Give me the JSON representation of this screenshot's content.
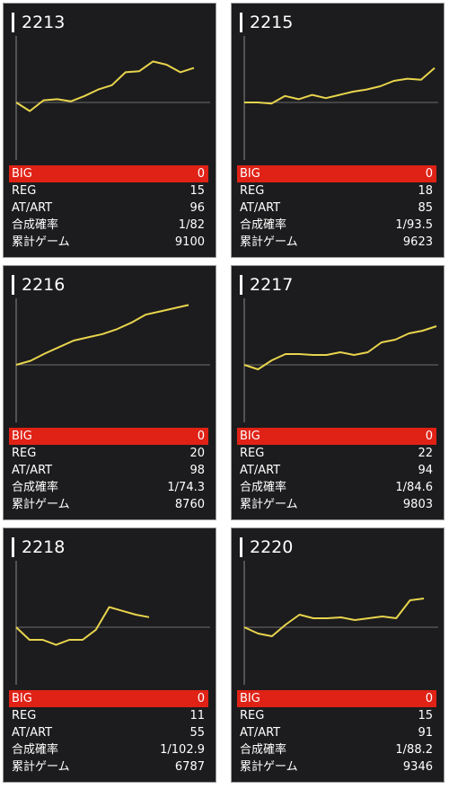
{
  "colors": {
    "line": "#e8d44d",
    "big_bar": "#e02216",
    "card_bg": "#1c1c1e",
    "axis": "#8a8a8a"
  },
  "labels": {
    "big": "BIG",
    "reg": "REG",
    "at": "AT/ART",
    "rate": "合成確率",
    "games": "累計ゲーム"
  },
  "machines": [
    {
      "number": "2213",
      "big": "0",
      "reg": "15",
      "at": "96",
      "rate": "1/82",
      "games": "9100",
      "trend": [
        0,
        -8,
        2,
        3,
        1,
        6,
        12,
        16,
        28,
        29,
        38,
        35,
        28,
        32
      ]
    },
    {
      "number": "2215",
      "big": "0",
      "reg": "18",
      "at": "85",
      "rate": "1/93.5",
      "games": "9623",
      "trend": [
        0,
        0,
        -1,
        6,
        3,
        7,
        4,
        7,
        10,
        12,
        15,
        20,
        22,
        21,
        32
      ]
    },
    {
      "number": "2216",
      "big": "0",
      "reg": "20",
      "at": "98",
      "rate": "1/74.3",
      "games": "8760",
      "trend": [
        0,
        5,
        14,
        22,
        30,
        34,
        38,
        44,
        52,
        62,
        66,
        70,
        74
      ]
    },
    {
      "number": "2217",
      "big": "0",
      "reg": "22",
      "at": "94",
      "rate": "1/84.6",
      "games": "9803",
      "trend": [
        0,
        -5,
        5,
        12,
        12,
        11,
        11,
        14,
        11,
        14,
        25,
        28,
        35,
        38,
        43
      ]
    },
    {
      "number": "2218",
      "big": "0",
      "reg": "11",
      "at": "55",
      "rate": "1/102.9",
      "games": "6787",
      "trend": [
        0,
        -10,
        -10,
        -14,
        -10,
        -10,
        -2,
        16,
        13,
        10,
        8
      ]
    },
    {
      "number": "2220",
      "big": "0",
      "reg": "15",
      "at": "91",
      "rate": "1/88.2",
      "games": "9346",
      "trend": [
        0,
        -7,
        -10,
        3,
        14,
        10,
        10,
        11,
        8,
        10,
        12,
        10,
        30,
        32
      ]
    }
  ]
}
